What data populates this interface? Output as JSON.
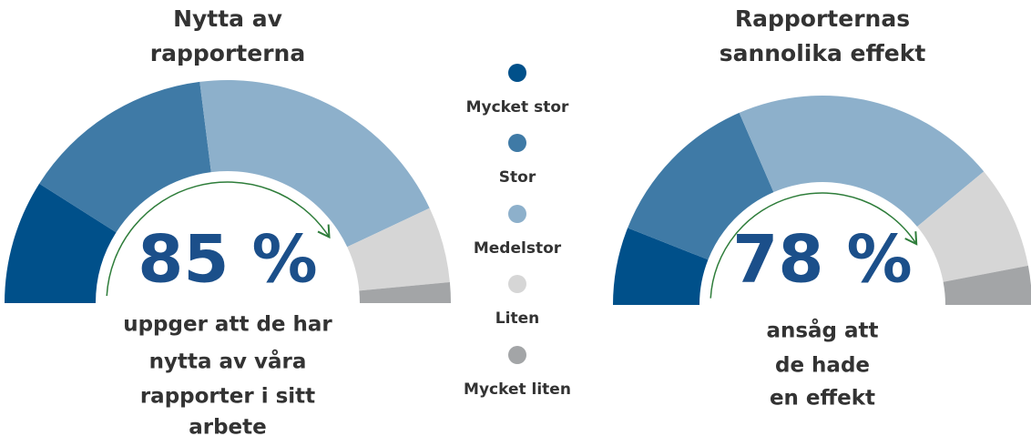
{
  "legend": [
    {
      "name": "Mycket stor",
      "color": "#00508a"
    },
    {
      "name": "Stor",
      "color": "#3f7aa6"
    },
    {
      "name": "Medelstor",
      "color": "#8db0cb"
    },
    {
      "name": "Liten",
      "color": "#d6d6d6"
    },
    {
      "name": "Mycket liten",
      "color": "#a3a5a7"
    }
  ],
  "chart_data": [
    {
      "type": "gauge",
      "title": [
        "Nytta av",
        "rapporterna"
      ],
      "values": [
        18,
        28,
        40,
        11,
        3
      ],
      "headline": "85 %",
      "subtitle": [
        "uppger att de har",
        "nytta av våra",
        "rapporter i sitt",
        "arbete"
      ]
    },
    {
      "type": "gauge",
      "title": [
        "Rapporternas",
        "sannolika effekt"
      ],
      "values": [
        12,
        25,
        41,
        16,
        6
      ],
      "headline": "78 %",
      "subtitle": [
        "ansåg att",
        "de hade",
        "en effekt"
      ]
    }
  ]
}
